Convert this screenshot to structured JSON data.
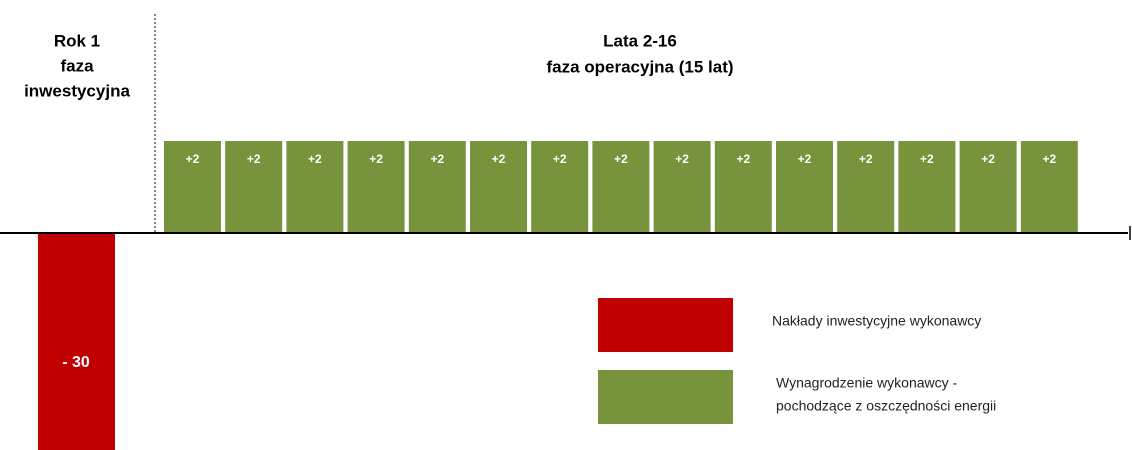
{
  "phases": [
    {
      "lines": [
        "Rok 1",
        "faza",
        "inwestycyjna"
      ]
    },
    {
      "lines": [
        "Lata 2-16",
        "faza operacyjna (15 lat)"
      ]
    }
  ],
  "investment": {
    "label": "- 30",
    "color": "#c00000"
  },
  "returns": {
    "labels": [
      "+2",
      "+2",
      "+2",
      "+2",
      "+2",
      "+2",
      "+2",
      "+2",
      "+2",
      "+2",
      "+2",
      "+2",
      "+2",
      "+2",
      "+2"
    ],
    "color": "#77933c"
  },
  "legend": [
    {
      "lines": [
        "Nakłady inwestycyjne wykonawcy"
      ],
      "color": "#c00000"
    },
    {
      "lines": [
        "Wynagrodzenie wykonawcy -",
        "pochodzące z oszczędności energii"
      ],
      "color": "#77933c"
    }
  ]
}
